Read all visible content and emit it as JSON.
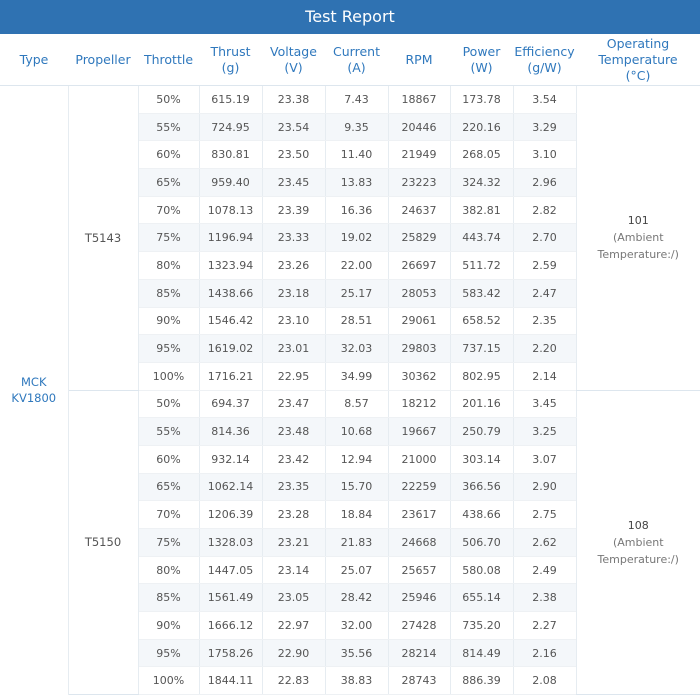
{
  "report_title": "Test Report",
  "headers": {
    "type": "Type",
    "propeller": "Propeller",
    "throttle": "Throttle",
    "thrust": "Thrust",
    "thrust_unit": "(g)",
    "voltage": "Voltage",
    "voltage_unit": "(V)",
    "current": "Current",
    "current_unit": "(A)",
    "rpm": "RPM",
    "power": "Power",
    "power_unit": "(W)",
    "efficiency": "Efficiency",
    "efficiency_unit": "(g/W)",
    "temperature_line1": "Operating",
    "temperature_line2": "Temperature",
    "temperature_unit": "(°C)"
  },
  "motor": {
    "name_line1": "MCK",
    "name_line2": "KV1800"
  },
  "groups": [
    {
      "propeller": "T5143",
      "temperature": "101",
      "temperature_note": "(Ambient Temperature:/)",
      "rows": [
        {
          "throttle": "50%",
          "thrust": "615.19",
          "voltage": "23.38",
          "current": "7.43",
          "rpm": "18867",
          "power": "173.78",
          "efficiency": "3.54"
        },
        {
          "throttle": "55%",
          "thrust": "724.95",
          "voltage": "23.54",
          "current": "9.35",
          "rpm": "20446",
          "power": "220.16",
          "efficiency": "3.29"
        },
        {
          "throttle": "60%",
          "thrust": "830.81",
          "voltage": "23.50",
          "current": "11.40",
          "rpm": "21949",
          "power": "268.05",
          "efficiency": "3.10"
        },
        {
          "throttle": "65%",
          "thrust": "959.40",
          "voltage": "23.45",
          "current": "13.83",
          "rpm": "23223",
          "power": "324.32",
          "efficiency": "2.96"
        },
        {
          "throttle": "70%",
          "thrust": "1078.13",
          "voltage": "23.39",
          "current": "16.36",
          "rpm": "24637",
          "power": "382.81",
          "efficiency": "2.82"
        },
        {
          "throttle": "75%",
          "thrust": "1196.94",
          "voltage": "23.33",
          "current": "19.02",
          "rpm": "25829",
          "power": "443.74",
          "efficiency": "2.70"
        },
        {
          "throttle": "80%",
          "thrust": "1323.94",
          "voltage": "23.26",
          "current": "22.00",
          "rpm": "26697",
          "power": "511.72",
          "efficiency": "2.59"
        },
        {
          "throttle": "85%",
          "thrust": "1438.66",
          "voltage": "23.18",
          "current": "25.17",
          "rpm": "28053",
          "power": "583.42",
          "efficiency": "2.47"
        },
        {
          "throttle": "90%",
          "thrust": "1546.42",
          "voltage": "23.10",
          "current": "28.51",
          "rpm": "29061",
          "power": "658.52",
          "efficiency": "2.35"
        },
        {
          "throttle": "95%",
          "thrust": "1619.02",
          "voltage": "23.01",
          "current": "32.03",
          "rpm": "29803",
          "power": "737.15",
          "efficiency": "2.20"
        },
        {
          "throttle": "100%",
          "thrust": "1716.21",
          "voltage": "22.95",
          "current": "34.99",
          "rpm": "30362",
          "power": "802.95",
          "efficiency": "2.14"
        }
      ]
    },
    {
      "propeller": "T5150",
      "temperature": "108",
      "temperature_note": "(Ambient Temperature:/)",
      "rows": [
        {
          "throttle": "50%",
          "thrust": "694.37",
          "voltage": "23.47",
          "current": "8.57",
          "rpm": "18212",
          "power": "201.16",
          "efficiency": "3.45"
        },
        {
          "throttle": "55%",
          "thrust": "814.36",
          "voltage": "23.48",
          "current": "10.68",
          "rpm": "19667",
          "power": "250.79",
          "efficiency": "3.25"
        },
        {
          "throttle": "60%",
          "thrust": "932.14",
          "voltage": "23.42",
          "current": "12.94",
          "rpm": "21000",
          "power": "303.14",
          "efficiency": "3.07"
        },
        {
          "throttle": "65%",
          "thrust": "1062.14",
          "voltage": "23.35",
          "current": "15.70",
          "rpm": "22259",
          "power": "366.56",
          "efficiency": "2.90"
        },
        {
          "throttle": "70%",
          "thrust": "1206.39",
          "voltage": "23.28",
          "current": "18.84",
          "rpm": "23617",
          "power": "438.66",
          "efficiency": "2.75"
        },
        {
          "throttle": "75%",
          "thrust": "1328.03",
          "voltage": "23.21",
          "current": "21.83",
          "rpm": "24668",
          "power": "506.70",
          "efficiency": "2.62"
        },
        {
          "throttle": "80%",
          "thrust": "1447.05",
          "voltage": "23.14",
          "current": "25.07",
          "rpm": "25657",
          "power": "580.08",
          "efficiency": "2.49"
        },
        {
          "throttle": "85%",
          "thrust": "1561.49",
          "voltage": "23.05",
          "current": "28.42",
          "rpm": "25946",
          "power": "655.14",
          "efficiency": "2.38"
        },
        {
          "throttle": "90%",
          "thrust": "1666.12",
          "voltage": "22.97",
          "current": "32.00",
          "rpm": "27428",
          "power": "735.20",
          "efficiency": "2.27"
        },
        {
          "throttle": "95%",
          "thrust": "1758.26",
          "voltage": "22.90",
          "current": "35.56",
          "rpm": "28214",
          "power": "814.49",
          "efficiency": "2.16"
        },
        {
          "throttle": "100%",
          "thrust": "1844.11",
          "voltage": "22.83",
          "current": "38.83",
          "rpm": "28743",
          "power": "886.39",
          "efficiency": "2.08"
        }
      ]
    }
  ]
}
